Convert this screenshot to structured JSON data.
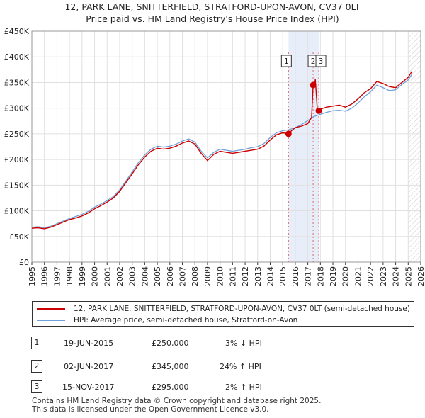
{
  "title": "12, PARK LANE, SNITTERFIELD, STRATFORD-UPON-AVON, CV37 0LT",
  "subtitle": "Price paid vs. HM Land Registry's House Price Index (HPI)",
  "chart_data": {
    "type": "line",
    "ylim": [
      0,
      450000
    ],
    "xlim": [
      1995,
      2026
    ],
    "ytick_labels": [
      "£0",
      "£50K",
      "£100K",
      "£150K",
      "£200K",
      "£250K",
      "£300K",
      "£350K",
      "£400K",
      "£450K"
    ],
    "ytick_values": [
      0,
      50000,
      100000,
      150000,
      200000,
      250000,
      300000,
      350000,
      400000,
      450000
    ],
    "xtick_labels": [
      "1995",
      "1996",
      "1997",
      "1998",
      "1999",
      "2000",
      "2001",
      "2002",
      "2003",
      "2004",
      "2005",
      "2006",
      "2007",
      "2008",
      "2009",
      "2010",
      "2011",
      "2012",
      "2013",
      "2014",
      "2015",
      "2016",
      "2017",
      "2018",
      "2019",
      "2020",
      "2021",
      "2022",
      "2023",
      "2024",
      "2025",
      "2026"
    ],
    "series": [
      {
        "name": "12, PARK LANE, SNITTERFIELD, STRATFORD-UPON-AVON, CV37 0LT (semi-detached house)",
        "color": "#cc0000",
        "x": [
          1995.0,
          1995.5,
          1996.0,
          1996.5,
          1997.0,
          1997.5,
          1998.0,
          1998.5,
          1999.0,
          1999.5,
          2000.0,
          2000.5,
          2001.0,
          2001.5,
          2002.0,
          2002.5,
          2003.0,
          2003.5,
          2004.0,
          2004.5,
          2005.0,
          2005.5,
          2006.0,
          2006.5,
          2007.0,
          2007.5,
          2008.0,
          2008.5,
          2009.0,
          2009.5,
          2010.0,
          2010.5,
          2011.0,
          2011.5,
          2012.0,
          2012.5,
          2013.0,
          2013.5,
          2014.0,
          2014.5,
          2015.0,
          2015.46,
          2015.7,
          2016.0,
          2016.5,
          2017.0,
          2017.3,
          2017.42,
          2017.5,
          2017.6,
          2017.75,
          2017.87,
          2018.0,
          2018.5,
          2019.0,
          2019.5,
          2020.0,
          2020.5,
          2021.0,
          2021.5,
          2022.0,
          2022.5,
          2023.0,
          2023.5,
          2024.0,
          2024.5,
          2025.0,
          2025.3
        ],
        "values": [
          66000,
          67000,
          65000,
          68000,
          73000,
          78000,
          83000,
          86000,
          90000,
          96000,
          104000,
          110000,
          117000,
          125000,
          138000,
          155000,
          172000,
          190000,
          205000,
          216000,
          222000,
          220000,
          222000,
          226000,
          232000,
          236000,
          230000,
          212000,
          198000,
          210000,
          216000,
          214000,
          212000,
          214000,
          216000,
          218000,
          220000,
          226000,
          238000,
          248000,
          252000,
          250000,
          256000,
          262000,
          265000,
          270000,
          282000,
          345000,
          340000,
          356000,
          300000,
          295000,
          298000,
          302000,
          304000,
          306000,
          302000,
          308000,
          318000,
          330000,
          338000,
          352000,
          348000,
          342000,
          340000,
          350000,
          360000,
          372000
        ]
      },
      {
        "name": "HPI: Average price, semi-detached house, Stratford-on-Avon",
        "color": "#6f9fd8",
        "x": [
          1995.0,
          1995.5,
          1996.0,
          1996.5,
          1997.0,
          1997.5,
          1998.0,
          1998.5,
          1999.0,
          1999.5,
          2000.0,
          2000.5,
          2001.0,
          2001.5,
          2002.0,
          2002.5,
          2003.0,
          2003.5,
          2004.0,
          2004.5,
          2005.0,
          2005.5,
          2006.0,
          2006.5,
          2007.0,
          2007.5,
          2008.0,
          2008.5,
          2009.0,
          2009.5,
          2010.0,
          2010.5,
          2011.0,
          2011.5,
          2012.0,
          2012.5,
          2013.0,
          2013.5,
          2014.0,
          2014.5,
          2015.0,
          2015.5,
          2016.0,
          2016.5,
          2017.0,
          2017.5,
          2018.0,
          2018.5,
          2019.0,
          2019.5,
          2020.0,
          2020.5,
          2021.0,
          2021.5,
          2022.0,
          2022.5,
          2023.0,
          2023.5,
          2024.0,
          2024.5,
          2025.0,
          2025.3
        ],
        "values": [
          68000,
          69000,
          67000,
          70000,
          75000,
          80000,
          85000,
          89000,
          93000,
          99000,
          107000,
          113000,
          120000,
          128000,
          141000,
          158000,
          176000,
          194000,
          209000,
          220000,
          226000,
          224000,
          226000,
          230000,
          236000,
          240000,
          234000,
          216000,
          203000,
          214000,
          220000,
          218000,
          216000,
          218000,
          220000,
          223000,
          225000,
          231000,
          243000,
          252000,
          256000,
          258000,
          262000,
          268000,
          276000,
          284000,
          288000,
          292000,
          295000,
          296000,
          294000,
          300000,
          310000,
          322000,
          332000,
          345000,
          340000,
          334000,
          336000,
          346000,
          355000,
          366000
        ]
      }
    ],
    "sales": [
      {
        "label": "1",
        "x": 2015.46,
        "value": 250000
      },
      {
        "label": "2",
        "x": 2017.42,
        "value": 345000
      },
      {
        "label": "3",
        "x": 2017.87,
        "value": 295000
      }
    ],
    "shaded_ranges": [
      [
        2015.46,
        2017.87
      ]
    ],
    "future_from": 2025.0
  },
  "legend": {
    "series1": "12, PARK LANE, SNITTERFIELD, STRATFORD-UPON-AVON, CV37 0LT (semi-detached house)",
    "series2": "HPI: Average price, semi-detached house, Stratford-on-Avon",
    "color1": "#cc0000",
    "color2": "#6f9fd8"
  },
  "transactions": [
    {
      "num": "1",
      "date": "19-JUN-2015",
      "price": "£250,000",
      "hpi": "3% ↓ HPI"
    },
    {
      "num": "2",
      "date": "02-JUN-2017",
      "price": "£345,000",
      "hpi": "24% ↑ HPI"
    },
    {
      "num": "3",
      "date": "15-NOV-2017",
      "price": "£295,000",
      "hpi": "2% ↑ HPI"
    }
  ],
  "footer": {
    "line1": "Contains HM Land Registry data © Crown copyright and database right 2025.",
    "line2": "This data is licensed under the Open Government Licence v3.0."
  }
}
